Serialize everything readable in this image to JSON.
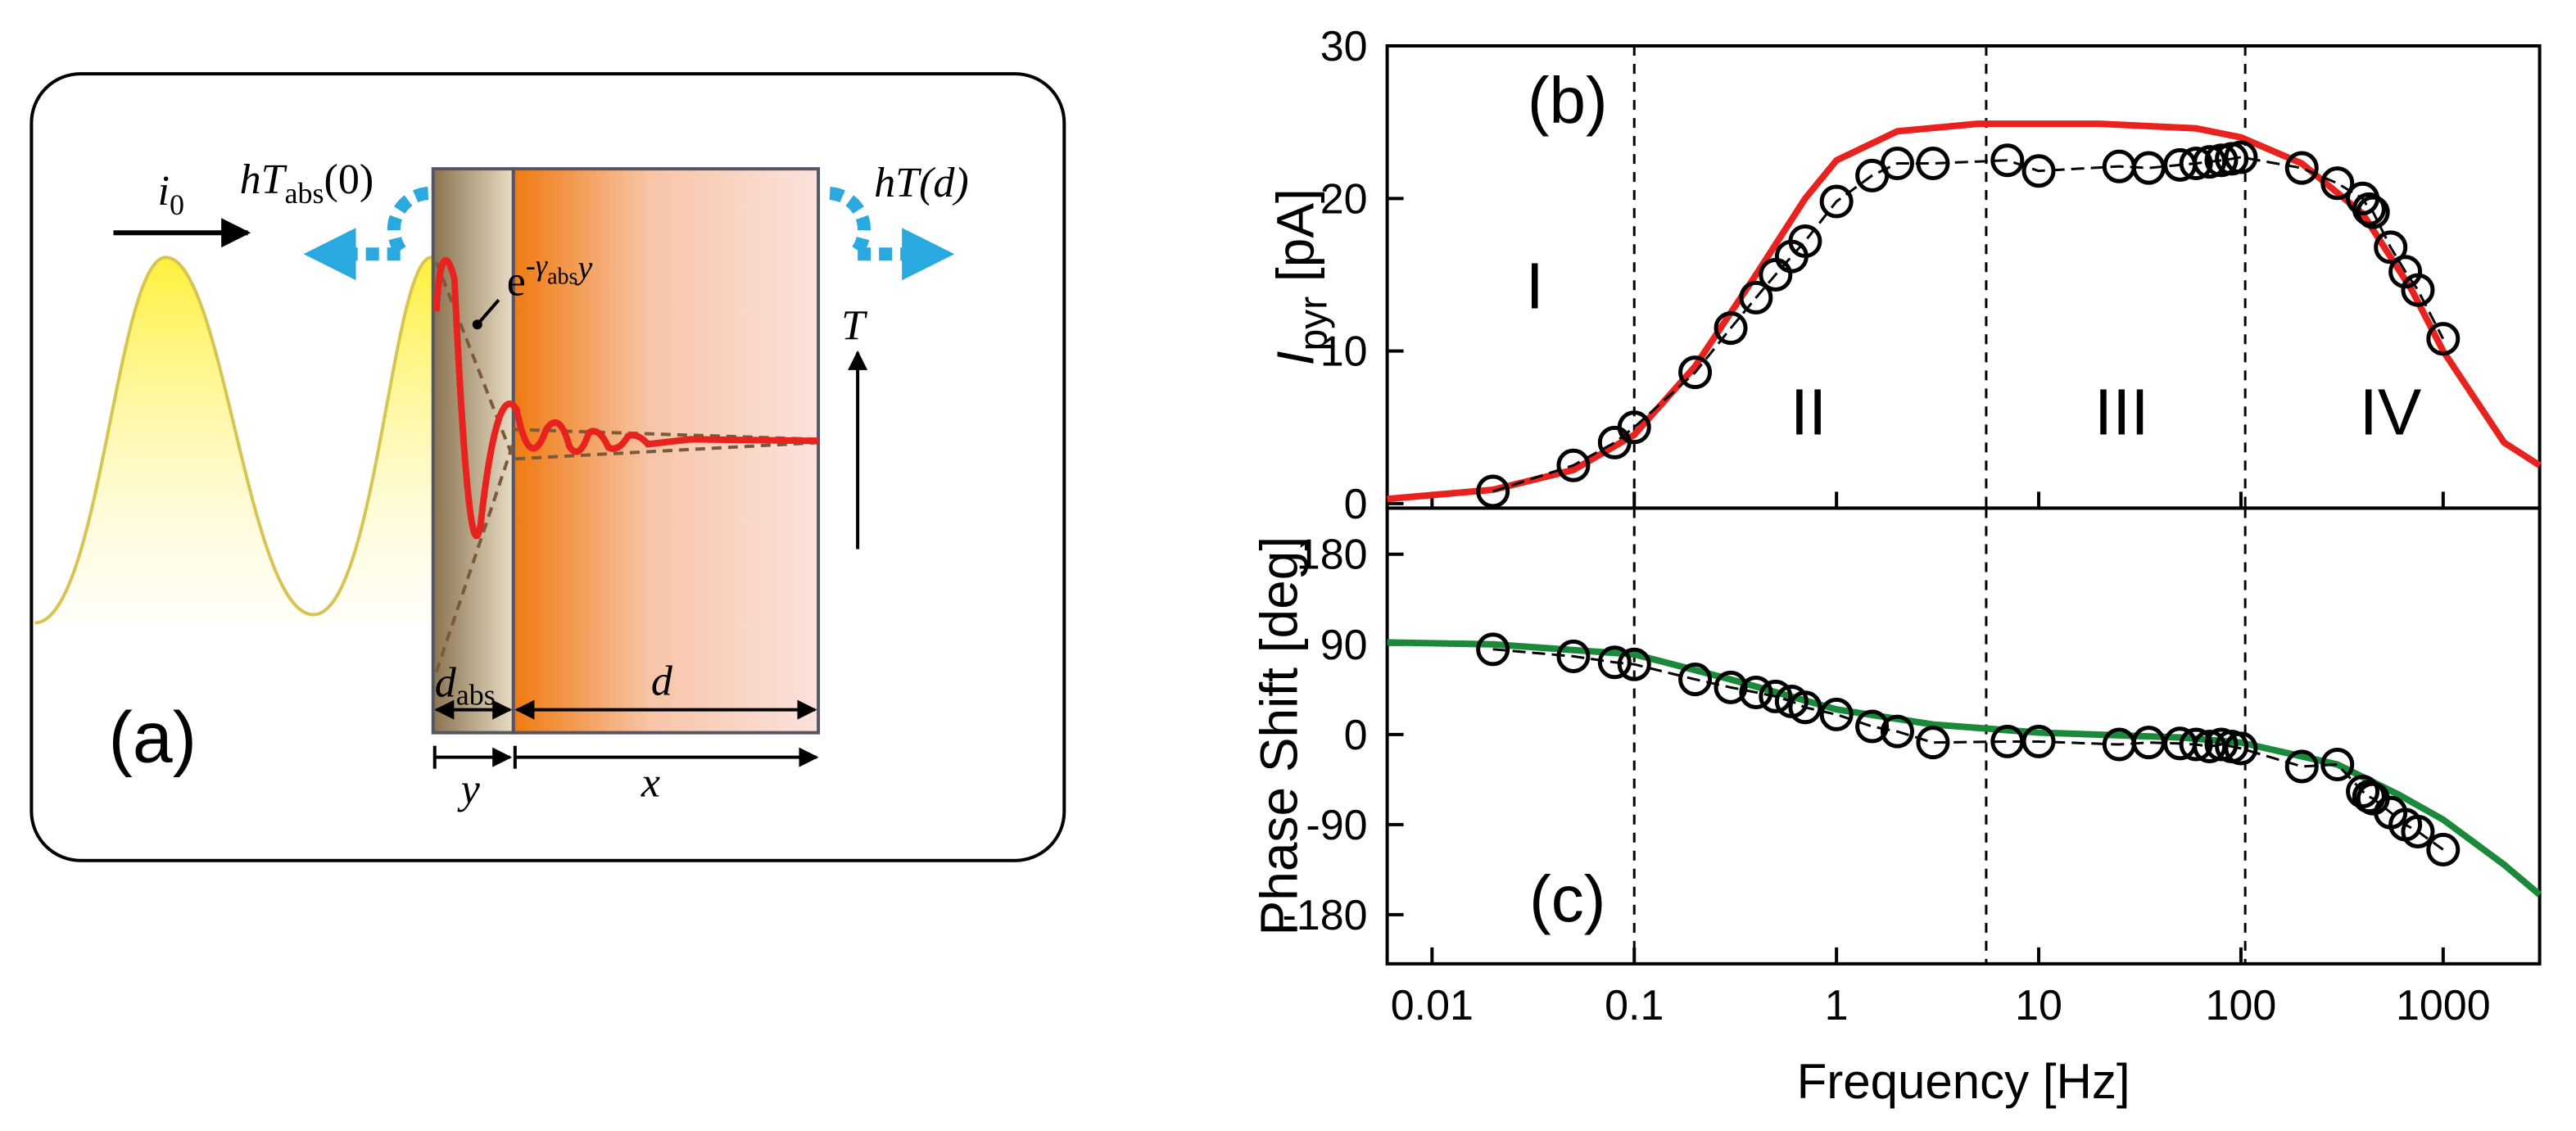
{
  "diagram": {
    "label": "(a)",
    "incident": [
      "i",
      "0"
    ],
    "left_loss": [
      "hT",
      "abs",
      "(0)"
    ],
    "right_loss": "hT(d)",
    "decay": [
      "e",
      "-γ",
      "abs",
      "y"
    ],
    "temperature": "T",
    "absorber_thickness": [
      "d",
      "abs"
    ],
    "sample_thickness": "d",
    "absorber_coord": "y",
    "sample_coord": "x"
  },
  "chart_data": [
    {
      "type": "line",
      "panel": "(b)",
      "y_label": [
        "I",
        "pyr",
        " [pA]"
      ],
      "log_x": true,
      "xlim": [
        0.006,
        3000
      ],
      "xticks": [
        0.01,
        0.1,
        1,
        10,
        100,
        1000
      ],
      "ylim": [
        -0.3,
        30
      ],
      "yticks": [
        0,
        10,
        20,
        30
      ],
      "vlines": [
        0.1,
        5.5,
        105
      ],
      "annotations": [
        "I",
        "II",
        "III",
        "IV"
      ],
      "series": [
        {
          "style": "line",
          "color": "#e8231f",
          "x": [
            0.006,
            0.02,
            0.05,
            0.1,
            0.2,
            0.4,
            0.7,
            1,
            2,
            5,
            20,
            60,
            100,
            200,
            400,
            700,
            1000,
            2000,
            3000
          ],
          "values": [
            0.3,
            0.9,
            2.2,
            4.5,
            9,
            15,
            20,
            22.5,
            24.4,
            24.9,
            24.9,
            24.6,
            24,
            22.3,
            19,
            14,
            10,
            4,
            2.5
          ]
        },
        {
          "style": "markers",
          "color": "#000000",
          "x": [
            0.02,
            0.05,
            0.08,
            0.1,
            0.2,
            0.3,
            0.4,
            0.5,
            0.6,
            0.7,
            1,
            1.5,
            2,
            3,
            7,
            10,
            25,
            35,
            50,
            60,
            70,
            80,
            90,
            100,
            200,
            300,
            400,
            430,
            450,
            550,
            650,
            750,
            1000
          ],
          "values": [
            0.8,
            2.5,
            4,
            5,
            8.6,
            11.5,
            13.5,
            15,
            16.2,
            17.2,
            19.8,
            21.5,
            22.3,
            22.3,
            22.5,
            21.8,
            22.1,
            22,
            22.2,
            22.3,
            22.4,
            22.5,
            22.6,
            22.7,
            22,
            21,
            20,
            19.3,
            19.1,
            16.8,
            15.2,
            14,
            10.8
          ]
        }
      ]
    },
    {
      "type": "line",
      "panel": "(c)",
      "y_label": [
        "Phase Shift [deg]"
      ],
      "x_label": "Frequency [Hz]",
      "log_x": true,
      "xlim": [
        0.006,
        3000
      ],
      "xticks": [
        0.01,
        0.1,
        1,
        10,
        100,
        1000
      ],
      "ylim": [
        -229,
        226
      ],
      "yticks": [
        180,
        90,
        0,
        -90,
        -180
      ],
      "vlines": [
        0.1,
        5.5,
        105
      ],
      "series": [
        {
          "style": "line",
          "color": "#1a8a3a",
          "x": [
            0.006,
            0.02,
            0.1,
            0.3,
            1,
            3,
            10,
            50,
            100,
            300,
            600,
            1000,
            2000,
            3000
          ],
          "values": [
            92,
            90,
            80,
            55,
            25,
            10,
            2,
            -3,
            -8,
            -30,
            -60,
            -85,
            -130,
            -160
          ]
        },
        {
          "style": "markers",
          "color": "#000000",
          "x": [
            0.02,
            0.05,
            0.08,
            0.1,
            0.2,
            0.3,
            0.4,
            0.5,
            0.6,
            0.7,
            1,
            1.5,
            2,
            3,
            7,
            10,
            25,
            35,
            50,
            60,
            70,
            80,
            90,
            100,
            200,
            300,
            400,
            430,
            450,
            550,
            650,
            750,
            1000
          ],
          "values": [
            85,
            78,
            72,
            70,
            55,
            47,
            42,
            38,
            33,
            27,
            20,
            8,
            3,
            -8,
            -7,
            -7,
            -10,
            -8,
            -9,
            -10,
            -12,
            -10,
            -12,
            -14,
            -32,
            -30,
            -57,
            -62,
            -64,
            -78,
            -90,
            -97,
            -115
          ]
        }
      ]
    }
  ]
}
